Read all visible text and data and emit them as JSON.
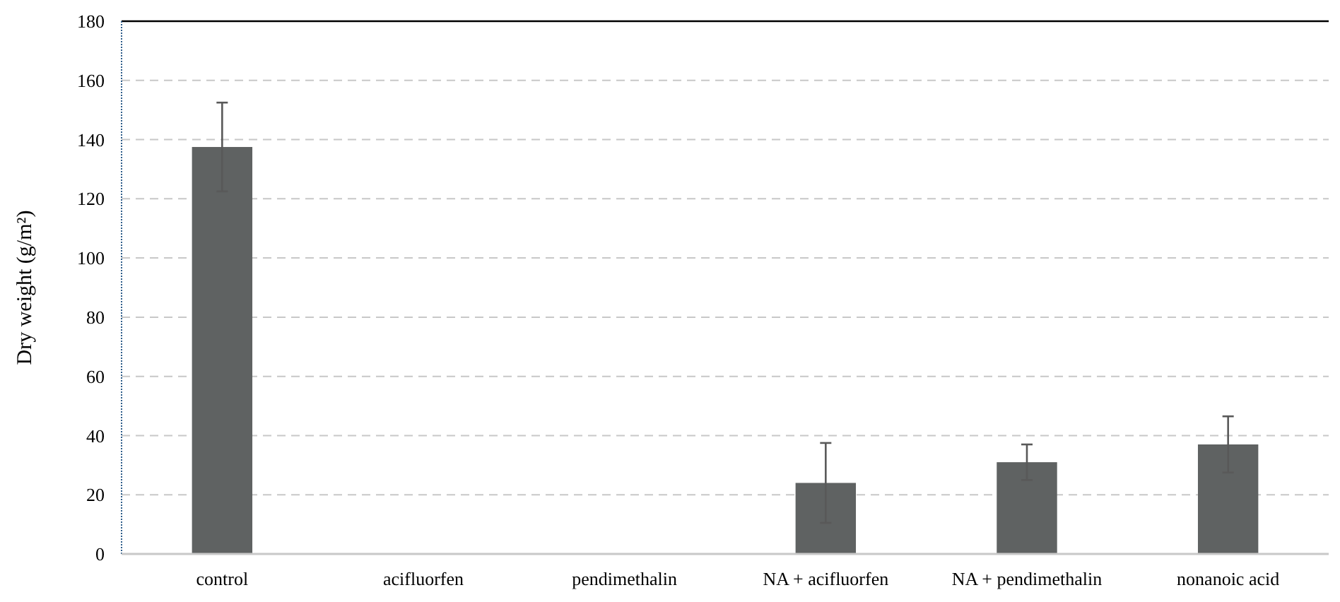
{
  "chart_data": {
    "type": "bar",
    "ylabel": "Dry weight (g/m²)",
    "categories": [
      "control",
      "acifluorfen",
      "pendimethalin",
      "NA + acifluorfen",
      "NA + pendimethalin",
      "nonanoic acid"
    ],
    "values": [
      137.5,
      0,
      0,
      24,
      31,
      37
    ],
    "errors": [
      15,
      null,
      null,
      13.5,
      6,
      9.5
    ],
    "color": "#5f6262",
    "ylim": [
      0,
      180
    ],
    "yticks": [
      0,
      20,
      40,
      60,
      80,
      100,
      120,
      140,
      160,
      180
    ],
    "grid": "y"
  }
}
